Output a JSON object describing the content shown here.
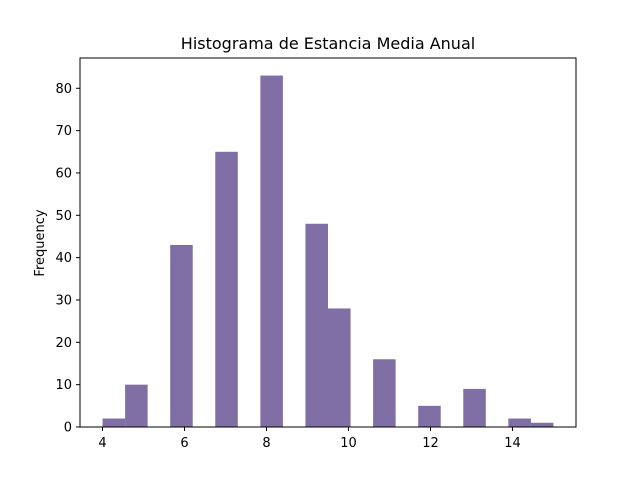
{
  "chart_data": {
    "type": "bar",
    "title": "Histograma de Estancia Media Anual",
    "xlabel": "",
    "ylabel": "Frequency",
    "xlim": [
      3.45,
      15.55
    ],
    "ylim": [
      0,
      87.15
    ],
    "bar_color": "#7f6fa5",
    "bin_width": 0.55,
    "bins": [
      {
        "start": 4.0,
        "value": 2
      },
      {
        "start": 4.55,
        "value": 10
      },
      {
        "start": 5.65,
        "value": 43
      },
      {
        "start": 6.75,
        "value": 65
      },
      {
        "start": 7.85,
        "value": 83
      },
      {
        "start": 8.95,
        "value": 48
      },
      {
        "start": 9.5,
        "value": 28
      },
      {
        "start": 10.6,
        "value": 16
      },
      {
        "start": 11.7,
        "value": 5
      },
      {
        "start": 12.8,
        "value": 9
      },
      {
        "start": 13.9,
        "value": 2
      },
      {
        "start": 14.45,
        "value": 1
      }
    ],
    "x_ticks": [
      {
        "value": 4,
        "label": "4"
      },
      {
        "value": 6,
        "label": "6"
      },
      {
        "value": 8,
        "label": "8"
      },
      {
        "value": 10,
        "label": "10"
      },
      {
        "value": 12,
        "label": "12"
      },
      {
        "value": 14,
        "label": "14"
      }
    ],
    "y_ticks": [
      {
        "value": 0,
        "label": "0"
      },
      {
        "value": 10,
        "label": "10"
      },
      {
        "value": 20,
        "label": "20"
      },
      {
        "value": 30,
        "label": "30"
      },
      {
        "value": 40,
        "label": "40"
      },
      {
        "value": 50,
        "label": "50"
      },
      {
        "value": 60,
        "label": "60"
      },
      {
        "value": 70,
        "label": "70"
      },
      {
        "value": 80,
        "label": "80"
      }
    ],
    "grid": false,
    "legend": "none"
  }
}
